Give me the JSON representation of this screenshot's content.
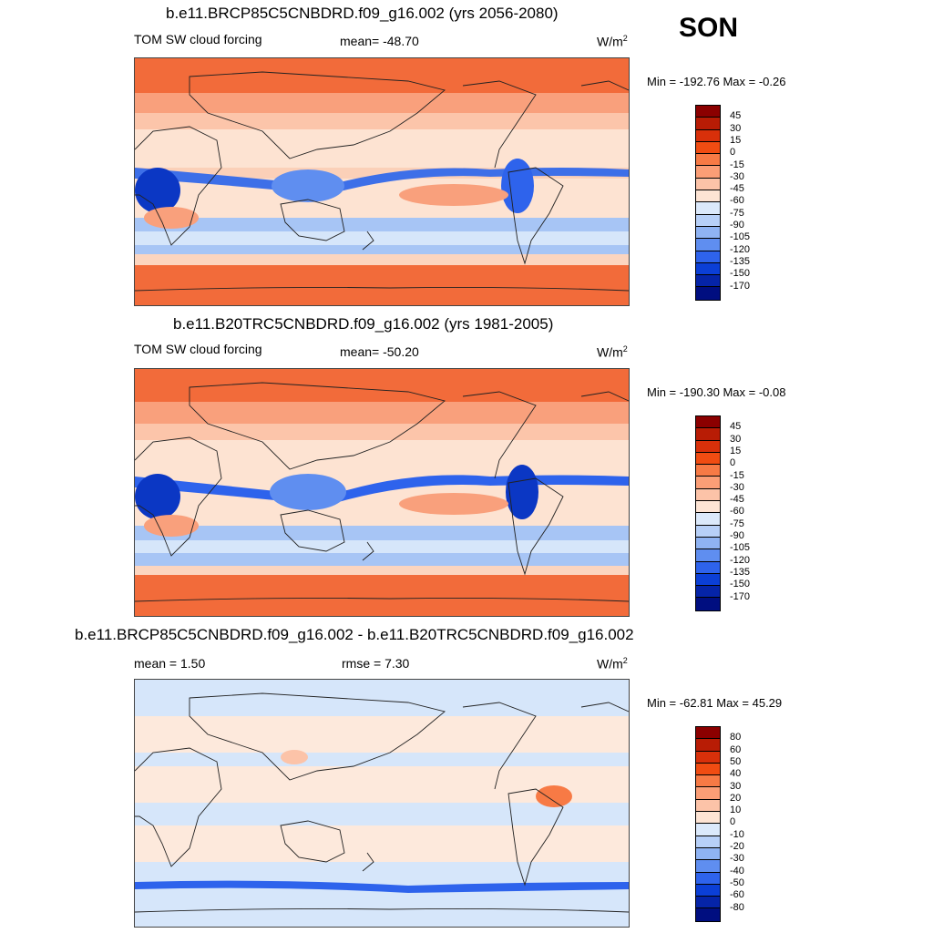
{
  "season": "SON",
  "panels": [
    {
      "title": "b.e11.BRCP85C5CNBDRD.f09_g16.002 (yrs 2056-2080)",
      "variable": "TOM SW cloud forcing",
      "stat1": "mean= -48.70",
      "stat2": "",
      "units": "W/m",
      "units_sup": "2",
      "minmax": "Min = -192.76 Max =  -0.26",
      "colorbar": {
        "labels": [
          "45",
          "30",
          "15",
          "0",
          "-15",
          "-30",
          "-45",
          "-60",
          "-75",
          "-90",
          "-105",
          "-120",
          "-135",
          "-150",
          "-170"
        ],
        "colors": [
          "#8b0000",
          "#b81c05",
          "#d8300a",
          "#f04c12",
          "#f77a45",
          "#fb9e76",
          "#fcc3a8",
          "#fde4d4",
          "#dbe9fb",
          "#b7d0f8",
          "#8fb3f3",
          "#5f8ef0",
          "#2e63ec",
          "#0b3fd6",
          "#0524a8",
          "#000e80"
        ]
      }
    },
    {
      "title": "b.e11.B20TRC5CNBDRD.f09_g16.002 (yrs 1981-2005)",
      "variable": "TOM SW cloud forcing",
      "stat1": "mean= -50.20",
      "stat2": "",
      "units": "W/m",
      "units_sup": "2",
      "minmax": "Min = -190.30 Max =  -0.08",
      "colorbar": {
        "labels": [
          "45",
          "30",
          "15",
          "0",
          "-15",
          "-30",
          "-45",
          "-60",
          "-75",
          "-90",
          "-105",
          "-120",
          "-135",
          "-150",
          "-170"
        ],
        "colors": [
          "#8b0000",
          "#b81c05",
          "#d8300a",
          "#f04c12",
          "#f77a45",
          "#fb9e76",
          "#fcc3a8",
          "#fde4d4",
          "#dbe9fb",
          "#b7d0f8",
          "#8fb3f3",
          "#5f8ef0",
          "#2e63ec",
          "#0b3fd6",
          "#0524a8",
          "#000e80"
        ]
      }
    },
    {
      "title": "b.e11.BRCP85C5CNBDRD.f09_g16.002 - b.e11.B20TRC5CNBDRD.f09_g16.002",
      "variable": "",
      "stat1": "mean =   1.50",
      "stat2": "rmse =   7.30",
      "units": "W/m",
      "units_sup": "2",
      "minmax": "Min = -62.81 Max =  45.29",
      "colorbar": {
        "labels": [
          "80",
          "60",
          "50",
          "40",
          "30",
          "20",
          "10",
          "0",
          "-10",
          "-20",
          "-30",
          "-40",
          "-50",
          "-60",
          "-80"
        ],
        "colors": [
          "#8b0000",
          "#b81c05",
          "#d8300a",
          "#f04c12",
          "#f77a45",
          "#fb9e76",
          "#fcc3a8",
          "#fde4d4",
          "#dbe9fb",
          "#b7d0f8",
          "#8fb3f3",
          "#5f8ef0",
          "#2e63ec",
          "#0b3fd6",
          "#0524a8",
          "#000e80"
        ]
      }
    }
  ],
  "palette": {
    "strong_pos": "#f26b3a",
    "mid_pos": "#f9a07c",
    "weak_pos": "#fcd5bf",
    "neutral_pos": "#fde9dc",
    "weak_neg": "#d6e6fa",
    "mid_neg": "#a7c5f5",
    "strong_neg": "#3d6fe8",
    "very_strong_neg": "#0b37c4",
    "coast": "#222222"
  }
}
